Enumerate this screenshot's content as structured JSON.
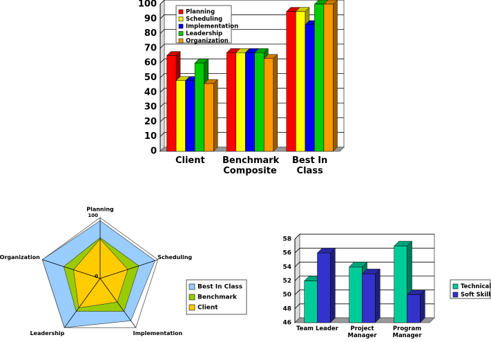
{
  "chart_data": [
    {
      "type": "bar3d",
      "categories": [
        "Client",
        "Benchmark Composite",
        "Best In Class"
      ],
      "series": [
        {
          "name": "Planning",
          "color": "#ff0000",
          "values": [
            65,
            67,
            95
          ]
        },
        {
          "name": "Scheduling",
          "color": "#ffff00",
          "values": [
            48,
            67,
            95
          ]
        },
        {
          "name": "Implementation",
          "color": "#0000ff",
          "values": [
            48,
            67,
            86
          ]
        },
        {
          "name": "Leadership",
          "color": "#00cc00",
          "values": [
            60,
            67,
            100
          ]
        },
        {
          "name": "Organization",
          "color": "#ff9900",
          "values": [
            46,
            63,
            100
          ]
        }
      ],
      "ylim": [
        0,
        100
      ],
      "yticks": [
        0,
        10,
        20,
        30,
        40,
        50,
        60,
        70,
        80,
        90,
        100
      ],
      "grid": true,
      "legend": "upper left"
    },
    {
      "type": "radar",
      "axes": [
        "Planning",
        "Scheduling",
        "Implementation",
        "Leadership",
        "Organization"
      ],
      "series": [
        {
          "name": "Best In Class",
          "color": "#99ccff",
          "values": [
            95,
            95,
            86,
            100,
            100
          ]
        },
        {
          "name": "Benchmark",
          "color": "#99cc00",
          "values": [
            67,
            67,
            67,
            67,
            63
          ]
        },
        {
          "name": "Client",
          "color": "#ffcc00",
          "values": [
            65,
            48,
            48,
            60,
            46
          ]
        }
      ],
      "rlim": [
        0,
        100
      ],
      "rticks": [
        0,
        100
      ],
      "legend": "right"
    },
    {
      "type": "bar3d",
      "categories": [
        "Team Leader",
        "Project Manager",
        "Program Manager"
      ],
      "series": [
        {
          "name": "Technical",
          "color": "#00cc99",
          "values": [
            52,
            54,
            57
          ]
        },
        {
          "name": "Soft Skills",
          "color": "#3333cc",
          "values": [
            56,
            53,
            50
          ]
        }
      ],
      "ylim": [
        46,
        58
      ],
      "yticks": [
        46,
        48,
        50,
        52,
        54,
        56,
        58
      ],
      "grid": true,
      "legend": "right"
    }
  ]
}
